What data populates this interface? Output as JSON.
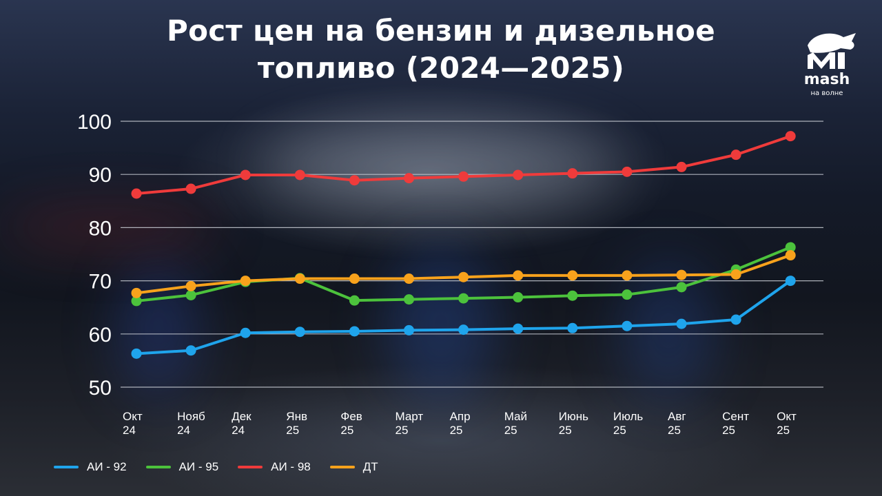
{
  "title": "Рост цен на бензин и дизельное топливо (2024—2025)",
  "logo": {
    "word": "mash",
    "tagline": "на волне"
  },
  "colors": {
    "ai92": "#1fa4ec",
    "ai95": "#4cc23c",
    "ai98": "#ef3b3b",
    "dt": "#f8a21c",
    "grid": "#c8ccd4"
  },
  "chart_data": {
    "type": "line",
    "title": "Рост цен на бензин и дизельное топливо (2024—2025)",
    "categories": [
      [
        "Окт",
        "24"
      ],
      [
        "Нояб",
        "24"
      ],
      [
        "Дек",
        "24"
      ],
      [
        "Янв",
        "25"
      ],
      [
        "Фев",
        "25"
      ],
      [
        "Март",
        "25"
      ],
      [
        "Апр",
        "25"
      ],
      [
        "Май",
        "25"
      ],
      [
        "Июнь",
        "25"
      ],
      [
        "Июль",
        "25"
      ],
      [
        "Авг",
        "25"
      ],
      [
        "Сент",
        "25"
      ],
      [
        "Окт",
        "25"
      ]
    ],
    "yticks": [
      50,
      60,
      70,
      80,
      90,
      100
    ],
    "ylim": [
      50,
      100
    ],
    "grid": true,
    "legend_position": "bottom-left",
    "series": [
      {
        "name": "АИ - 92",
        "color": "#1fa4ec",
        "values": [
          56.3,
          56.9,
          60.2,
          60.4,
          60.5,
          60.7,
          60.8,
          61.0,
          61.1,
          61.5,
          61.9,
          62.7,
          70.0
        ]
      },
      {
        "name": "АИ - 95",
        "color": "#4cc23c",
        "values": [
          66.2,
          67.3,
          69.8,
          70.5,
          66.3,
          66.5,
          66.7,
          66.9,
          67.2,
          67.4,
          68.8,
          72.1,
          76.3
        ]
      },
      {
        "name": "АИ - 98",
        "color": "#ef3b3b",
        "values": [
          86.4,
          87.3,
          89.9,
          89.9,
          88.9,
          89.3,
          89.6,
          89.9,
          90.2,
          90.5,
          91.4,
          93.7,
          97.2
        ]
      },
      {
        "name": "ДТ",
        "color": "#f8a21c",
        "values": [
          67.7,
          69.0,
          70.0,
          70.4,
          70.4,
          70.4,
          70.7,
          71.0,
          71.0,
          71.0,
          71.1,
          71.2,
          74.8
        ]
      }
    ]
  }
}
